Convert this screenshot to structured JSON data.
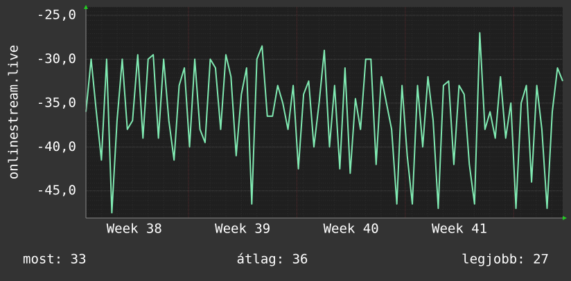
{
  "chart_data": {
    "type": "line",
    "ylabel": "onlinestream.live",
    "x": [
      38.054,
      38.102,
      38.15,
      38.197,
      38.245,
      38.293,
      38.341,
      38.389,
      38.436,
      38.484,
      38.532,
      38.58,
      38.628,
      38.675,
      38.723,
      38.771,
      38.819,
      38.867,
      38.914,
      38.962,
      39.01,
      39.058,
      39.106,
      39.153,
      39.201,
      39.249,
      39.297,
      39.345,
      39.392,
      39.44,
      39.488,
      39.536,
      39.584,
      39.631,
      39.679,
      39.727,
      39.775,
      39.823,
      39.87,
      39.918,
      39.966,
      40.014,
      40.062,
      40.109,
      40.157,
      40.205,
      40.253,
      40.301,
      40.348,
      40.396,
      40.444,
      40.492,
      40.54,
      40.587,
      40.635,
      40.683,
      40.731,
      40.779,
      40.826,
      40.874,
      40.922,
      40.97,
      41.018,
      41.065,
      41.113,
      41.161,
      41.209,
      41.257,
      41.304,
      41.352,
      41.4,
      41.448,
      41.496,
      41.543,
      41.591,
      41.639,
      41.687,
      41.735,
      41.782,
      41.83,
      41.878,
      41.926,
      41.974,
      42.021,
      42.069,
      42.117,
      42.165,
      42.213,
      42.26,
      42.308,
      42.356,
      42.404,
      42.452
    ],
    "series": [
      {
        "color": "#80eab2",
        "values": [
          -36,
          -30,
          -36,
          -41.5,
          -30,
          -47.5,
          -37,
          -30,
          -38,
          -37,
          -29.5,
          -39,
          -30,
          -29.5,
          -39,
          -30,
          -37,
          -41.5,
          -33,
          -31,
          -40,
          -30,
          -38,
          -39.5,
          -30,
          -31,
          -38,
          -29.5,
          -32,
          -41,
          -34,
          -31,
          -46.5,
          -30,
          -28.5,
          -36.5,
          -36.5,
          -33,
          -35,
          -38,
          -33,
          -42.5,
          -34,
          -32.5,
          -40,
          -35,
          -29,
          -40,
          -33,
          -42.5,
          -31,
          -43,
          -34.5,
          -38,
          -30,
          -30,
          -42,
          -32,
          -35,
          -38,
          -46.5,
          -33,
          -41,
          -46.5,
          -33,
          -40,
          -32,
          -37,
          -47,
          -33,
          -32.5,
          -42,
          -33,
          -34,
          -42,
          -46.5,
          -27,
          -38,
          -36,
          -39,
          -32,
          -39,
          -35,
          -47,
          -35,
          -33,
          -44,
          -33,
          -38,
          -47,
          -36,
          -31,
          -32.5
        ]
      }
    ],
    "xlim": [
      38.054,
      42.452
    ],
    "xticks": [
      {
        "value": 38.5,
        "label": "Week 38"
      },
      {
        "value": 39.5,
        "label": "Week 39"
      },
      {
        "value": 40.5,
        "label": "Week 40"
      },
      {
        "value": 41.5,
        "label": "Week 41"
      }
    ],
    "xgrid": [
      39,
      40,
      41,
      42
    ],
    "ylim": [
      -48.1,
      -24.05
    ],
    "yticks": [
      {
        "value": -25,
        "label": "-25,0"
      },
      {
        "value": -30,
        "label": "-30,0"
      },
      {
        "value": -35,
        "label": "-35,0"
      },
      {
        "value": -40,
        "label": "-40,0"
      },
      {
        "value": -45,
        "label": "-45,0"
      }
    ],
    "grid": true,
    "footer": [
      "most: 33",
      "átlag: 36",
      "legjobb: 27"
    ]
  }
}
